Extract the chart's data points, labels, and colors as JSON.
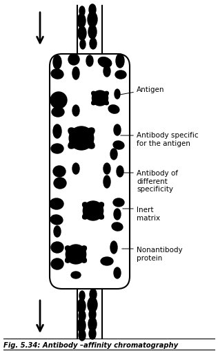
{
  "title": "Fig. 5.34: Antibody –affinity chromatography",
  "background_color": "#ffffff",
  "border_color": "#000000",
  "particle_color": "#000000",
  "labels": {
    "antigen": "Antigen",
    "antibody_specific": "Antibody specific\nfor the antigen",
    "antibody_different": "Antibody of\ndifferent\nspecificity",
    "inert_matrix": "Inert\nmatrix",
    "nonantibody": "Nonantibody\nprotein"
  },
  "fig_width": 3.16,
  "fig_height": 5.08,
  "dpi": 100
}
